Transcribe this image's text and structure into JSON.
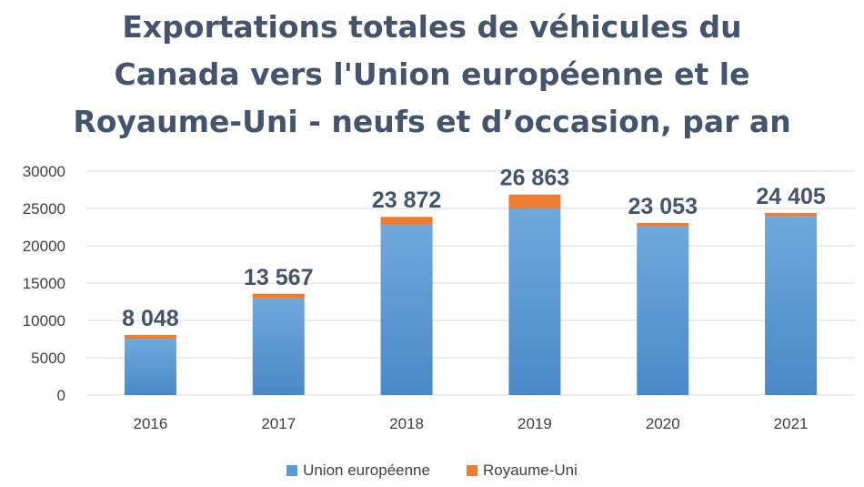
{
  "chart_data": {
    "type": "bar",
    "stacked": true,
    "title_lines": [
      "Exportations totales de véhicules du",
      "Canada vers l'Union européenne et le",
      "Royaume-Uni - neufs et d’occasion, par an"
    ],
    "categories": [
      "2016",
      "2017",
      "2018",
      "2019",
      "2020",
      "2021"
    ],
    "series": [
      {
        "name": "Union européenne",
        "color": "#5b9bd5",
        "values": [
          7550,
          12950,
          22800,
          25000,
          22600,
          23950
        ]
      },
      {
        "name": "Royaume-Uni",
        "color": "#ed7d31",
        "values": [
          498,
          617,
          1072,
          1863,
          453,
          455
        ]
      }
    ],
    "totals_labels": [
      "8 048",
      "13 567",
      "23 872",
      "26 863",
      "23 053",
      "24 405"
    ],
    "yticks": [
      "0",
      "5000",
      "10000",
      "15000",
      "20000",
      "25000",
      "30000"
    ],
    "ylim": [
      0,
      30000
    ],
    "grid": true,
    "legend_position": "bottom"
  }
}
